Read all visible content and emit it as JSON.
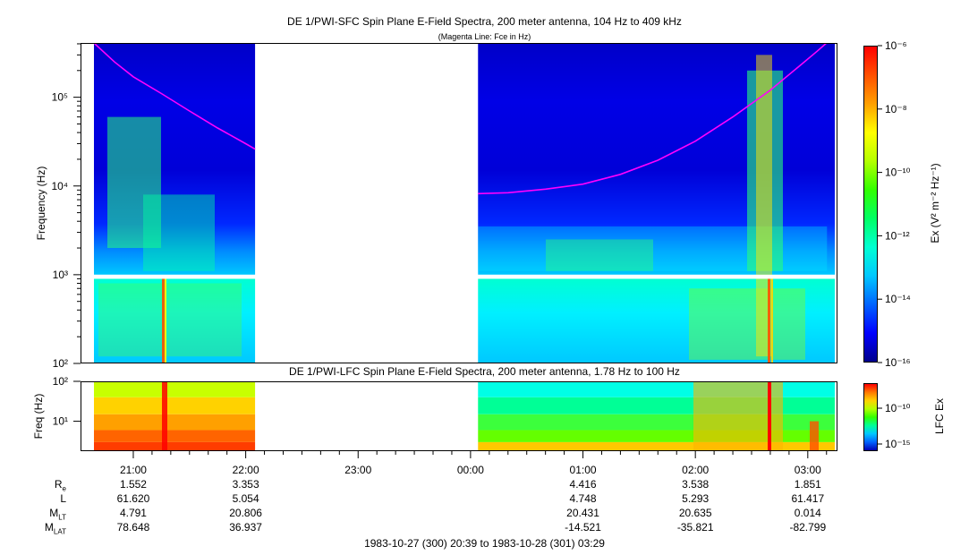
{
  "top_panel": {
    "title": "DE 1/PWI-SFC  Spin Plane E-Field Spectra, 200 meter antenna, 104 Hz to 409 kHz",
    "subtitle": "(Magenta Line: Fce in Hz)",
    "ylabel": "Frequency (Hz)",
    "colorbar_label": "Ex (V² m⁻² Hz⁻¹)"
  },
  "bottom_panel": {
    "title": "DE 1/PWI-LFC  Spin Plane E-Field Spectra, 200 meter antenna, 1.78 Hz to 100 Hz",
    "ylabel": "Freq (Hz)",
    "colorbar_label": "LFC Ex"
  },
  "time_axis": {
    "tick_labels": [
      "21:00",
      "22:00",
      "23:00",
      "00:00",
      "01:00",
      "02:00",
      "03:00"
    ],
    "range_label": "1983-10-27 (300) 20:39 to 1983-10-28 (301) 03:29"
  },
  "ephemeris": {
    "rows": [
      {
        "label": "R",
        "sub": "e",
        "values": [
          "1.552",
          "3.353",
          "",
          "",
          "4.416",
          "3.538",
          "1.851"
        ]
      },
      {
        "label": "L",
        "sub": "",
        "values": [
          "61.620",
          "5.054",
          "",
          "",
          "4.748",
          "5.293",
          "61.417"
        ]
      },
      {
        "label": "M",
        "sub": "LT",
        "values": [
          "4.791",
          "20.806",
          "",
          "",
          "20.431",
          "20.635",
          "0.014"
        ]
      },
      {
        "label": "M",
        "sub": "LAT",
        "values": [
          "78.648",
          "36.937",
          "",
          "",
          "-14.521",
          "-35.821",
          "-82.799"
        ]
      }
    ]
  },
  "chart_data": [
    {
      "type": "heatmap",
      "title": "DE 1/PWI-SFC  Spin Plane E-Field Spectra, 200 meter antenna, 104 Hz to 409 kHz",
      "subtitle": "(Magenta Line: Fce in Hz)",
      "xlabel": "",
      "ylabel": "Frequency (Hz)",
      "yscale": "log",
      "ylim": [
        100,
        409000
      ],
      "y_tick_labels": [
        "10²",
        "10³",
        "10⁴",
        "10⁵"
      ],
      "x_tick_labels": [
        "21:00",
        "22:00",
        "23:00",
        "00:00",
        "01:00",
        "02:00",
        "03:00"
      ],
      "data_gaps_utc": [
        [
          "22:05",
          "00:04"
        ]
      ],
      "colorbar": {
        "label": "Ex (V² m⁻² Hz⁻¹)",
        "scale": "log",
        "range": [
          1e-16,
          1e-06
        ],
        "tick_labels": [
          "10⁻⁶",
          "10⁻⁸",
          "10⁻¹⁰",
          "10⁻¹²",
          "10⁻¹⁴",
          "10⁻¹⁶"
        ],
        "colormap": [
          "#00008c",
          "#0000ff",
          "#00c8ff",
          "#00ffb4",
          "#78ff00",
          "#ffff00",
          "#ff8c00",
          "#ff0000"
        ]
      },
      "series": [
        {
          "name": "Fce",
          "color": "#ff00ff",
          "segments": [
            {
              "x": [
                "20:39",
                "20:50",
                "21:00",
                "21:15",
                "21:30",
                "21:45",
                "22:00",
                "22:05"
              ],
              "y": [
                409000,
                250000,
                170000,
                110000,
                70000,
                45000,
                30000,
                26000
              ]
            },
            {
              "x": [
                "00:04",
                "00:20",
                "00:40",
                "01:00",
                "01:20",
                "01:40",
                "02:00",
                "02:20",
                "02:40",
                "02:55",
                "03:05",
                "03:10"
              ],
              "y": [
                8200,
                8400,
                9200,
                10500,
                13500,
                19500,
                32000,
                60000,
                120000,
                220000,
                330000,
                409000
              ]
            }
          ]
        }
      ]
    },
    {
      "type": "heatmap",
      "title": "DE 1/PWI-LFC  Spin Plane E-Field Spectra, 200 meter antenna, 1.78 Hz to 100 Hz",
      "xlabel": "",
      "ylabel": "Freq (Hz)",
      "yscale": "log",
      "ylim": [
        1.78,
        100
      ],
      "y_tick_labels": [
        "10¹",
        "10²"
      ],
      "x_tick_labels": [
        "21:00",
        "22:00",
        "23:00",
        "00:00",
        "01:00",
        "02:00",
        "03:00"
      ],
      "data_gaps_utc": [
        [
          "22:05",
          "00:04"
        ]
      ],
      "colorbar": {
        "label": "LFC Ex",
        "scale": "log",
        "tick_labels": [
          "10⁻¹⁰",
          "10⁻¹⁵"
        ]
      }
    }
  ]
}
